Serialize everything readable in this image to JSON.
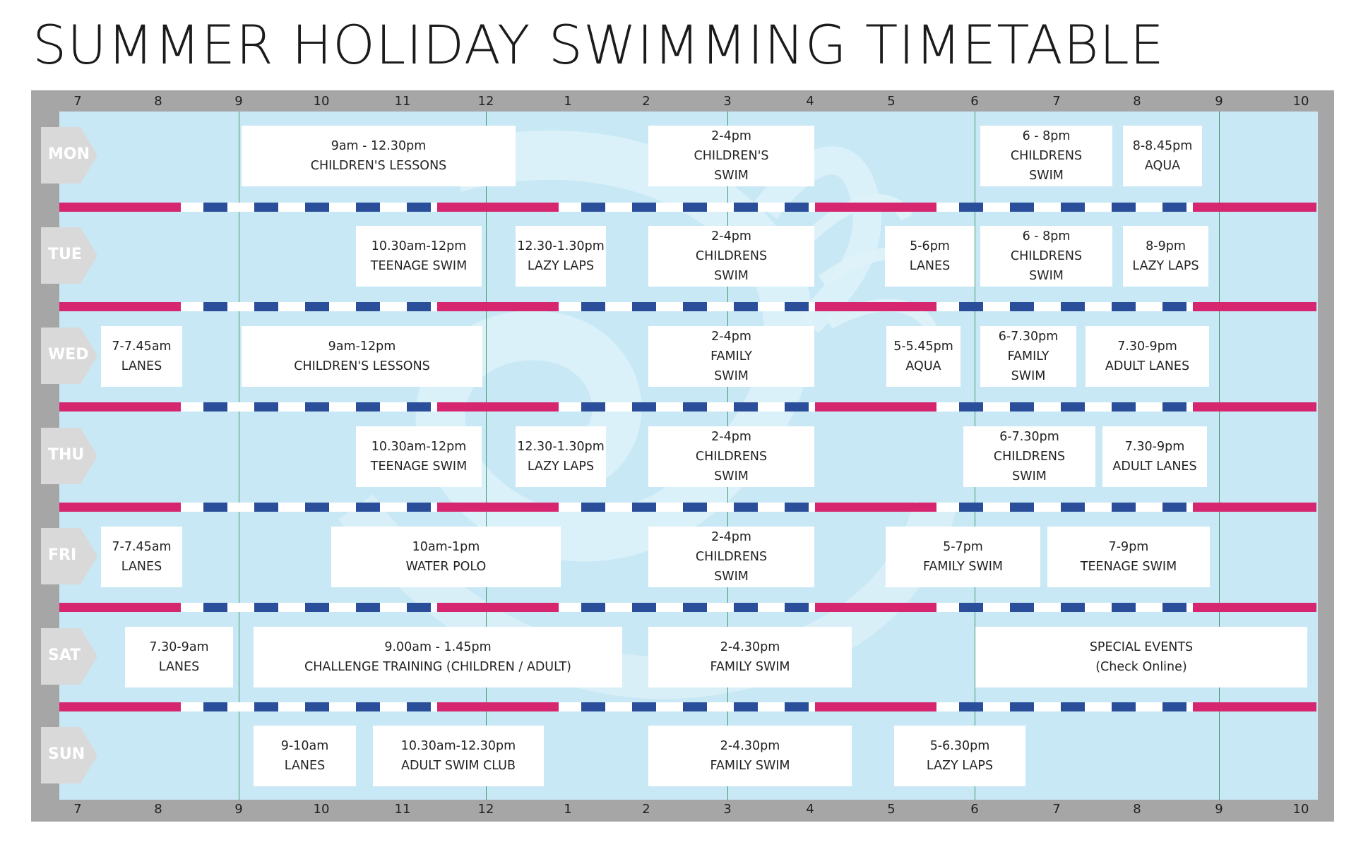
{
  "title": "SUMMER HOLIDAY SWIMMING TIMETABLE",
  "hour_labels": [
    "7",
    "8",
    "9",
    "10",
    "11",
    "12",
    "1",
    "2",
    "3",
    "4",
    "5",
    "6",
    "7",
    "8",
    "9",
    "10"
  ],
  "days": [
    {
      "label": "MON",
      "sessions": [
        {
          "text": "9am - 12.30pm\nCHILDREN'S LESSONS"
        },
        {
          "text": "2-4pm\nCHILDREN'S\nSWIM"
        },
        {
          "text": "6 - 8pm\nCHILDRENS\nSWIM"
        },
        {
          "text": "8-8.45pm\nAQUA"
        }
      ]
    },
    {
      "label": "TUE",
      "sessions": [
        {
          "text": "10.30am-12pm\nTEENAGE SWIM"
        },
        {
          "text": "12.30-1.30pm\nLAZY LAPS"
        },
        {
          "text": "2-4pm\nCHILDRENS\nSWIM"
        },
        {
          "text": "5-6pm\nLANES"
        },
        {
          "text": "6 - 8pm\nCHILDRENS\nSWIM"
        },
        {
          "text": "8-9pm\nLAZY LAPS"
        }
      ]
    },
    {
      "label": "WED",
      "sessions": [
        {
          "text": "7-7.45am\nLANES"
        },
        {
          "text": "9am-12pm\nCHILDREN'S LESSONS"
        },
        {
          "text": "2-4pm\nFAMILY\nSWIM"
        },
        {
          "text": "5-5.45pm\nAQUA"
        },
        {
          "text": "6-7.30pm\nFAMILY\nSWIM"
        },
        {
          "text": "7.30-9pm\nADULT LANES"
        }
      ]
    },
    {
      "label": "THU",
      "sessions": [
        {
          "text": "10.30am-12pm\nTEENAGE SWIM"
        },
        {
          "text": "12.30-1.30pm\nLAZY LAPS"
        },
        {
          "text": "2-4pm\nCHILDRENS\nSWIM"
        },
        {
          "text": "6-7.30pm\nCHILDRENS\nSWIM"
        },
        {
          "text": "7.30-9pm\nADULT LANES"
        }
      ]
    },
    {
      "label": "FRI",
      "sessions": [
        {
          "text": "7-7.45am\nLANES"
        },
        {
          "text": "10am-1pm\nWATER POLO"
        },
        {
          "text": "2-4pm\nCHILDRENS\nSWIM"
        },
        {
          "text": "5-7pm\nFAMILY SWIM"
        },
        {
          "text": "7-9pm\nTEENAGE SWIM"
        }
      ]
    },
    {
      "label": "SAT",
      "sessions": [
        {
          "text": "7.30-9am\nLANES"
        },
        {
          "text": "9.00am - 1.45pm\nCHALLENGE TRAINING (CHILDREN / ADULT)"
        },
        {
          "text": "2-4.30pm\nFAMILY SWIM"
        },
        {
          "text": "SPECIAL EVENTS\n(Check Online)"
        }
      ]
    },
    {
      "label": "SUN",
      "sessions": [
        {
          "text": "9-10am\nLANES"
        },
        {
          "text": "10.30am-12.30pm\nADULT SWIM CLUB"
        },
        {
          "text": "2-4.30pm\nFAMILY SWIM"
        },
        {
          "text": "5-6.30pm\nLAZY LAPS"
        }
      ]
    }
  ],
  "colors": {
    "frame": "#a6a6a6",
    "water": "#c9e8f5",
    "lane_pink": "#d6266f",
    "lane_blue": "#2a4e9a",
    "grid_line": "#3f9a6e",
    "day_tab": "#d9d9d9"
  }
}
